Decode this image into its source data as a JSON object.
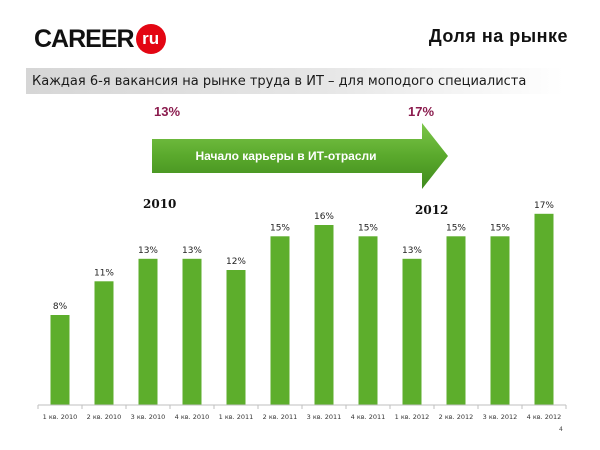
{
  "header": {
    "logo_word": "CAREER",
    "logo_badge": "ru",
    "title": "Доля на рынке"
  },
  "subtitle": "Каждая 6-я вакансия на рынке труда в ИТ – для моподого специалиста",
  "callouts": {
    "share_start": "13%",
    "share_end": "17%",
    "arrow_text": "Начало карьеры в ИТ-отрасли",
    "year_start": "2010",
    "year_end": "2012"
  },
  "page_number": "4",
  "colors": {
    "bar": "#5dae2c",
    "arrow": "#58a82b",
    "logo_red": "#e30613",
    "share_text": "#8b1c4e"
  },
  "chart_data": {
    "type": "bar",
    "categories": [
      "1 кв. 2010",
      "2 кв. 2010",
      "3 кв. 2010",
      "4 кв. 2010",
      "1 кв. 2011",
      "2 кв. 2011",
      "3 кв. 2011",
      "4 кв. 2011",
      "1 кв. 2012",
      "2 кв. 2012",
      "3 кв. 2012",
      "4 кв. 2012"
    ],
    "values": [
      8,
      11,
      13,
      13,
      12,
      15,
      16,
      15,
      13,
      15,
      15,
      17
    ],
    "labels": [
      "8%",
      "11%",
      "13%",
      "13%",
      "12%",
      "15%",
      "16%",
      "15%",
      "13%",
      "15%",
      "15%",
      "17%"
    ],
    "title": "",
    "xlabel": "",
    "ylabel": "",
    "unit": "%",
    "grid": false,
    "legend": "none"
  }
}
